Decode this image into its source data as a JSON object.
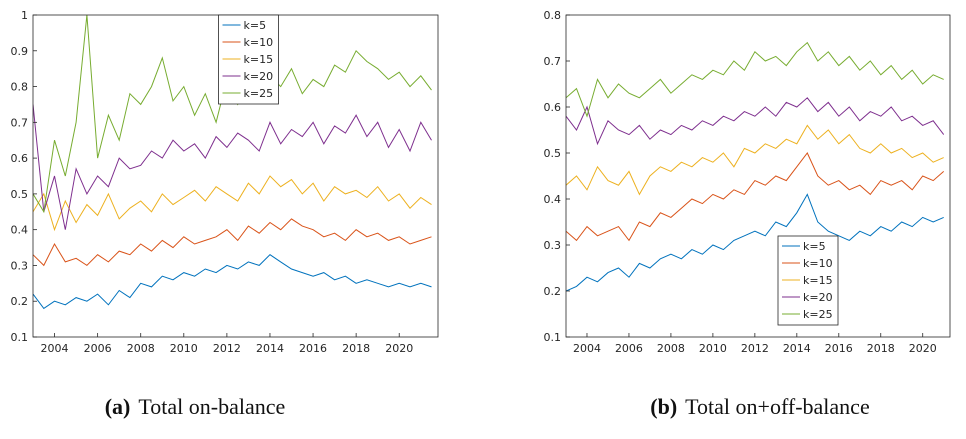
{
  "chart_data": [
    {
      "type": "line",
      "caption_label": "(a)",
      "caption": "Total on-balance",
      "xlim": [
        2003,
        2021.8
      ],
      "xticks": [
        2004,
        2006,
        2008,
        2010,
        2012,
        2014,
        2016,
        2018,
        2020
      ],
      "ylim": [
        0.1,
        1
      ],
      "yticks": [
        0.1,
        0.2,
        0.3,
        0.4,
        0.5,
        0.6,
        0.7,
        0.8,
        0.9,
        1
      ],
      "legend": "north",
      "x": [
        2003,
        2003.5,
        2004,
        2004.5,
        2005,
        2005.5,
        2006,
        2006.5,
        2007,
        2007.5,
        2008,
        2008.5,
        2009,
        2009.5,
        2010,
        2010.5,
        2011,
        2011.5,
        2012,
        2012.5,
        2013,
        2013.5,
        2014,
        2014.5,
        2015,
        2015.5,
        2016,
        2016.5,
        2017,
        2017.5,
        2018,
        2018.5,
        2019,
        2019.5,
        2020,
        2020.5,
        2021,
        2021.5
      ],
      "series": [
        {
          "name": "k=5",
          "color": "#0072BD",
          "values": [
            0.22,
            0.18,
            0.2,
            0.19,
            0.21,
            0.2,
            0.22,
            0.19,
            0.23,
            0.21,
            0.25,
            0.24,
            0.27,
            0.26,
            0.28,
            0.27,
            0.29,
            0.28,
            0.3,
            0.29,
            0.31,
            0.3,
            0.33,
            0.31,
            0.29,
            0.28,
            0.27,
            0.28,
            0.26,
            0.27,
            0.25,
            0.26,
            0.25,
            0.24,
            0.25,
            0.24,
            0.25,
            0.24
          ]
        },
        {
          "name": "k=10",
          "color": "#D95319",
          "values": [
            0.33,
            0.3,
            0.36,
            0.31,
            0.32,
            0.3,
            0.33,
            0.31,
            0.34,
            0.33,
            0.36,
            0.34,
            0.37,
            0.35,
            0.38,
            0.36,
            0.37,
            0.38,
            0.4,
            0.37,
            0.41,
            0.39,
            0.42,
            0.4,
            0.43,
            0.41,
            0.4,
            0.38,
            0.39,
            0.37,
            0.4,
            0.38,
            0.39,
            0.37,
            0.38,
            0.36,
            0.37,
            0.38
          ]
        },
        {
          "name": "k=15",
          "color": "#EDB120",
          "values": [
            0.45,
            0.5,
            0.4,
            0.48,
            0.42,
            0.47,
            0.44,
            0.5,
            0.43,
            0.46,
            0.48,
            0.45,
            0.5,
            0.47,
            0.49,
            0.51,
            0.48,
            0.52,
            0.5,
            0.48,
            0.53,
            0.5,
            0.55,
            0.52,
            0.54,
            0.5,
            0.53,
            0.48,
            0.52,
            0.5,
            0.51,
            0.49,
            0.52,
            0.48,
            0.5,
            0.46,
            0.49,
            0.47
          ]
        },
        {
          "name": "k=20",
          "color": "#7E2F8E",
          "values": [
            0.75,
            0.45,
            0.55,
            0.4,
            0.57,
            0.5,
            0.55,
            0.52,
            0.6,
            0.57,
            0.58,
            0.62,
            0.6,
            0.65,
            0.62,
            0.64,
            0.6,
            0.66,
            0.63,
            0.67,
            0.65,
            0.62,
            0.7,
            0.64,
            0.68,
            0.66,
            0.7,
            0.64,
            0.69,
            0.67,
            0.72,
            0.66,
            0.7,
            0.63,
            0.68,
            0.62,
            0.7,
            0.65
          ]
        },
        {
          "name": "k=25",
          "color": "#77AC30",
          "values": [
            0.5,
            0.45,
            0.65,
            0.55,
            0.7,
            1.0,
            0.6,
            0.72,
            0.65,
            0.78,
            0.75,
            0.8,
            0.88,
            0.76,
            0.8,
            0.72,
            0.78,
            0.7,
            0.82,
            0.75,
            0.8,
            0.78,
            0.83,
            0.8,
            0.85,
            0.78,
            0.82,
            0.8,
            0.86,
            0.84,
            0.9,
            0.87,
            0.85,
            0.82,
            0.84,
            0.8,
            0.83,
            0.79
          ]
        }
      ]
    },
    {
      "type": "line",
      "caption_label": "(b)",
      "caption": "Total on+off-balance",
      "xlim": [
        2003,
        2021.3
      ],
      "xticks": [
        2004,
        2006,
        2008,
        2010,
        2012,
        2014,
        2016,
        2018,
        2020
      ],
      "ylim": [
        0.1,
        0.8
      ],
      "yticks": [
        0.1,
        0.2,
        0.3,
        0.4,
        0.5,
        0.6,
        0.7,
        0.8
      ],
      "legend": "south-east",
      "x": [
        2003,
        2003.5,
        2004,
        2004.5,
        2005,
        2005.5,
        2006,
        2006.5,
        2007,
        2007.5,
        2008,
        2008.5,
        2009,
        2009.5,
        2010,
        2010.5,
        2011,
        2011.5,
        2012,
        2012.5,
        2013,
        2013.5,
        2014,
        2014.5,
        2015,
        2015.5,
        2016,
        2016.5,
        2017,
        2017.5,
        2018,
        2018.5,
        2019,
        2019.5,
        2020,
        2020.5,
        2021
      ],
      "series": [
        {
          "name": "k=5",
          "color": "#0072BD",
          "values": [
            0.2,
            0.21,
            0.23,
            0.22,
            0.24,
            0.25,
            0.23,
            0.26,
            0.25,
            0.27,
            0.28,
            0.27,
            0.29,
            0.28,
            0.3,
            0.29,
            0.31,
            0.32,
            0.33,
            0.32,
            0.35,
            0.34,
            0.37,
            0.41,
            0.35,
            0.33,
            0.32,
            0.31,
            0.33,
            0.32,
            0.34,
            0.33,
            0.35,
            0.34,
            0.36,
            0.35,
            0.36
          ]
        },
        {
          "name": "k=10",
          "color": "#D95319",
          "values": [
            0.33,
            0.31,
            0.34,
            0.32,
            0.33,
            0.34,
            0.31,
            0.35,
            0.34,
            0.37,
            0.36,
            0.38,
            0.4,
            0.39,
            0.41,
            0.4,
            0.42,
            0.41,
            0.44,
            0.43,
            0.45,
            0.44,
            0.47,
            0.5,
            0.45,
            0.43,
            0.44,
            0.42,
            0.43,
            0.41,
            0.44,
            0.43,
            0.44,
            0.42,
            0.45,
            0.44,
            0.46
          ]
        },
        {
          "name": "k=15",
          "color": "#EDB120",
          "values": [
            0.43,
            0.45,
            0.42,
            0.47,
            0.44,
            0.43,
            0.46,
            0.41,
            0.45,
            0.47,
            0.46,
            0.48,
            0.47,
            0.49,
            0.48,
            0.5,
            0.47,
            0.51,
            0.5,
            0.52,
            0.51,
            0.53,
            0.52,
            0.56,
            0.53,
            0.55,
            0.52,
            0.54,
            0.51,
            0.5,
            0.52,
            0.5,
            0.51,
            0.49,
            0.5,
            0.48,
            0.49
          ]
        },
        {
          "name": "k=20",
          "color": "#7E2F8E",
          "values": [
            0.58,
            0.55,
            0.6,
            0.52,
            0.57,
            0.55,
            0.54,
            0.56,
            0.53,
            0.55,
            0.54,
            0.56,
            0.55,
            0.57,
            0.56,
            0.58,
            0.57,
            0.59,
            0.58,
            0.6,
            0.58,
            0.61,
            0.6,
            0.62,
            0.59,
            0.61,
            0.58,
            0.6,
            0.57,
            0.59,
            0.58,
            0.6,
            0.57,
            0.58,
            0.56,
            0.57,
            0.54
          ]
        },
        {
          "name": "k=25",
          "color": "#77AC30",
          "values": [
            0.62,
            0.64,
            0.58,
            0.66,
            0.62,
            0.65,
            0.63,
            0.62,
            0.64,
            0.66,
            0.63,
            0.65,
            0.67,
            0.66,
            0.68,
            0.67,
            0.7,
            0.68,
            0.72,
            0.7,
            0.71,
            0.69,
            0.72,
            0.74,
            0.7,
            0.72,
            0.69,
            0.71,
            0.68,
            0.7,
            0.67,
            0.69,
            0.66,
            0.68,
            0.65,
            0.67,
            0.66
          ]
        }
      ]
    }
  ]
}
